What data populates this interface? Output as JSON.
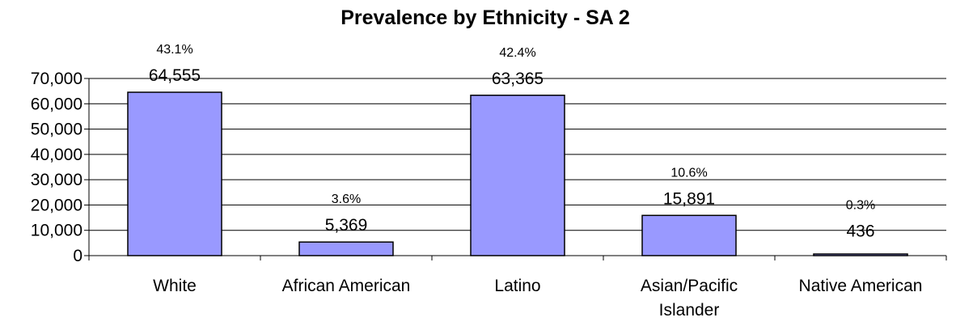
{
  "chart_data": {
    "type": "bar",
    "title": "Prevalence by Ethnicity - SA 2",
    "xlabel": "",
    "ylabel": "",
    "categories": [
      [
        "White"
      ],
      [
        "African American"
      ],
      [
        "Latino"
      ],
      [
        "Asian/Pacific",
        "Islander"
      ],
      [
        "Native American"
      ]
    ],
    "values": [
      64555,
      5369,
      63365,
      15891,
      436
    ],
    "value_labels": [
      "64,555",
      "5,369",
      "63,365",
      "15,891",
      "436"
    ],
    "percent_labels": [
      "43.1%",
      "3.6%",
      "42.4%",
      "10.6%",
      "0.3%"
    ],
    "ylim": [
      0,
      70000
    ],
    "yticks": [
      0,
      10000,
      20000,
      30000,
      40000,
      50000,
      60000,
      70000
    ],
    "ytick_labels": [
      "0",
      "10,000",
      "20,000",
      "30,000",
      "40,000",
      "50,000",
      "60,000",
      "70,000"
    ],
    "grid": true,
    "legend": "none",
    "bar_color": "#9999ff",
    "bar_edge_color": "#000000",
    "gridline_color": "#000000"
  }
}
